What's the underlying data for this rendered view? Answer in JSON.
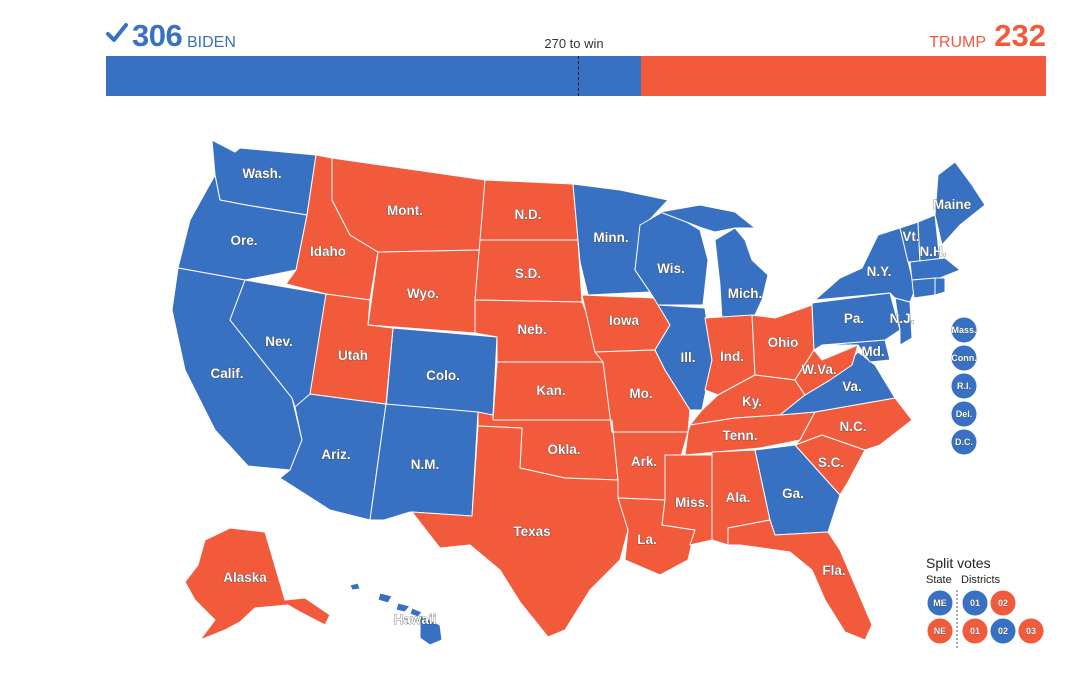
{
  "header": {
    "dem": {
      "count": "306",
      "name": "BIDEN"
    },
    "rep": {
      "count": "232",
      "name": "TRUMP"
    },
    "threshold_label": "270 to win"
  },
  "electoral_bar": {
    "dem_votes": 306,
    "rep_votes": 232,
    "total_votes": 538,
    "threshold": 270
  },
  "colors": {
    "dem": "#3871c2",
    "rep": "#f25a3c"
  },
  "map_labels": {
    "wash": "Wash.",
    "ore": "Ore.",
    "calif": "Calif.",
    "nev": "Nev.",
    "idaho": "Idaho",
    "mont": "Mont.",
    "wyo": "Wyo.",
    "utah": "Utah",
    "ariz": "Ariz.",
    "colo": "Colo.",
    "nm": "N.M.",
    "nd": "N.D.",
    "sd": "S.D.",
    "neb": "Neb.",
    "kan": "Kan.",
    "okla": "Okla.",
    "texas": "Texas",
    "minn": "Minn.",
    "iowa": "Iowa",
    "mo": "Mo.",
    "ark": "Ark.",
    "la": "La.",
    "wis": "Wis.",
    "ill": "Ill.",
    "mich": "Mich.",
    "ind": "Ind.",
    "ohio": "Ohio",
    "ky": "Ky.",
    "tenn": "Tenn.",
    "miss": "Miss.",
    "ala": "Ala.",
    "ga": "Ga.",
    "fla": "Fla.",
    "sc": "S.C.",
    "nc": "N.C.",
    "va": "Va.",
    "wva": "W.Va.",
    "md": "Md.",
    "pa": "Pa.",
    "ny": "N.Y.",
    "nj": "N.J.",
    "vt": "Vt.",
    "nh": "N.H.",
    "maine": "Maine",
    "alaska": "Alaska",
    "hawaii": "Hawaii"
  },
  "small_states": [
    {
      "label": "Mass.",
      "winner": "dem"
    },
    {
      "label": "Conn.",
      "winner": "dem"
    },
    {
      "label": "R.I.",
      "winner": "dem"
    },
    {
      "label": "Del.",
      "winner": "dem"
    },
    {
      "label": "D.C.",
      "winner": "dem"
    }
  ],
  "legend": {
    "title": "Split votes",
    "state_header": "State",
    "districts_header": "Districts",
    "rows": [
      {
        "state": "ME",
        "districts": [
          "01",
          "02"
        ]
      },
      {
        "state": "NE",
        "districts": [
          "01",
          "02",
          "03"
        ]
      }
    ]
  }
}
